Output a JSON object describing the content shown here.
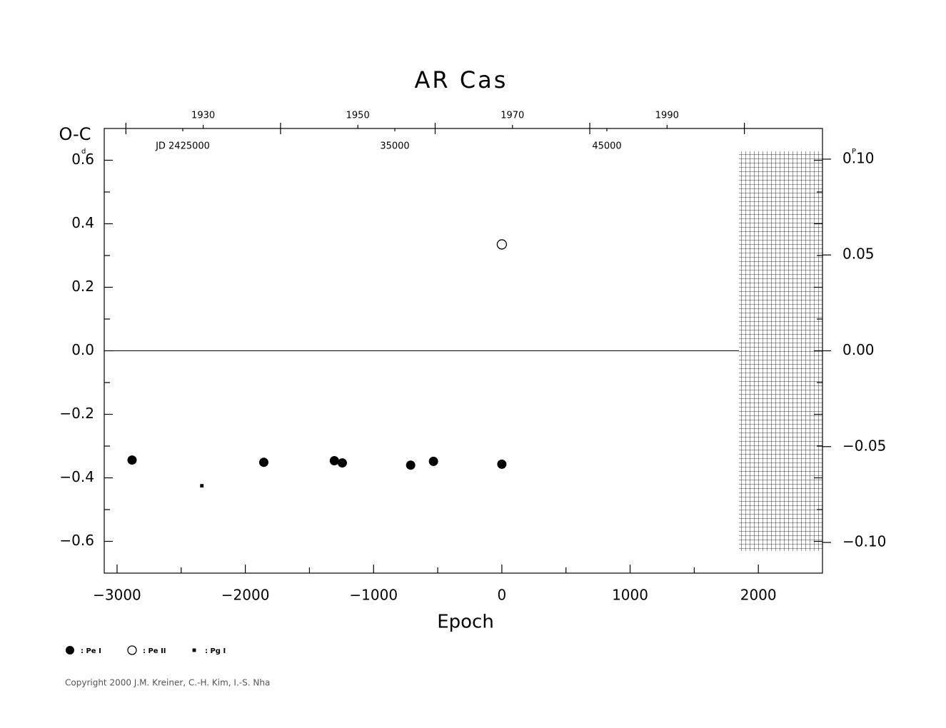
{
  "chart_data": {
    "type": "scatter",
    "title": "AR Cas",
    "y_label": "O-C",
    "y_unit": "d",
    "y2_unit": "P",
    "x_label": "Epoch",
    "copyright": "Copyright 2000 J.M. Kreiner, C.-H. Kim, I.-S. Nha",
    "xlim": [
      -3100,
      2500
    ],
    "xticks": [
      {
        "value": -3000,
        "label": "−3000"
      },
      {
        "value": -2000,
        "label": "−2000"
      },
      {
        "value": -1000,
        "label": "−1000"
      },
      0,
      1000,
      2000
    ],
    "xminor": [
      -2500,
      -1500,
      -500,
      500,
      1500
    ],
    "ylim": [
      -0.7,
      0.7
    ],
    "yticks": [
      {
        "value": -0.6,
        "label": "−0.6"
      },
      {
        "value": -0.4,
        "label": "−0.4"
      },
      {
        "value": -0.2,
        "label": "−0.2"
      },
      {
        "value": 0,
        "label": "0.0"
      },
      0.2,
      0.4,
      0.6
    ],
    "yminor": [
      -0.5,
      -0.3,
      -0.1,
      0.1,
      0.3,
      0.5
    ],
    "y2lim": [
      -0.116,
      0.116
    ],
    "y2ticks": [
      {
        "value": -0.1,
        "label": "−0.10"
      },
      {
        "value": -0.05,
        "label": "−0.05"
      },
      {
        "value": 0,
        "label": "0.00"
      },
      0.05,
      {
        "value": 0.1,
        "label": "0.10"
      }
    ],
    "x2lim": [
      1917.2,
      2010.1
    ],
    "x2ticks": [
      1930,
      1950,
      1970,
      1990
    ],
    "x2minor": [
      1920,
      1940,
      1960,
      1980,
      2000
    ],
    "x3lim": [
      2421296,
      2455168
    ],
    "x3ticks": [
      {
        "value": 2425000,
        "label": "JD 2425000"
      },
      {
        "value": 2435000,
        "label": "35000"
      },
      {
        "value": 2445000,
        "label": "45000"
      }
    ],
    "series": [
      {
        "name": ": Pe I",
        "marker": "circle",
        "color": "#000000",
        "x": [
          -2883,
          -1856,
          -1306,
          -1244,
          -711,
          -533,
          0
        ],
        "values": [
          -0.344,
          -0.351,
          -0.346,
          -0.353,
          -0.36,
          -0.348,
          -0.357
        ]
      },
      {
        "name": ": Pe II",
        "marker": "open-circle",
        "color": "#000000",
        "x": [
          0
        ],
        "values": [
          0.335
        ]
      },
      {
        "name": ": Pg I",
        "marker": "square",
        "color": "#000000",
        "x": [
          -2339
        ],
        "values": [
          -0.425
        ]
      }
    ]
  }
}
